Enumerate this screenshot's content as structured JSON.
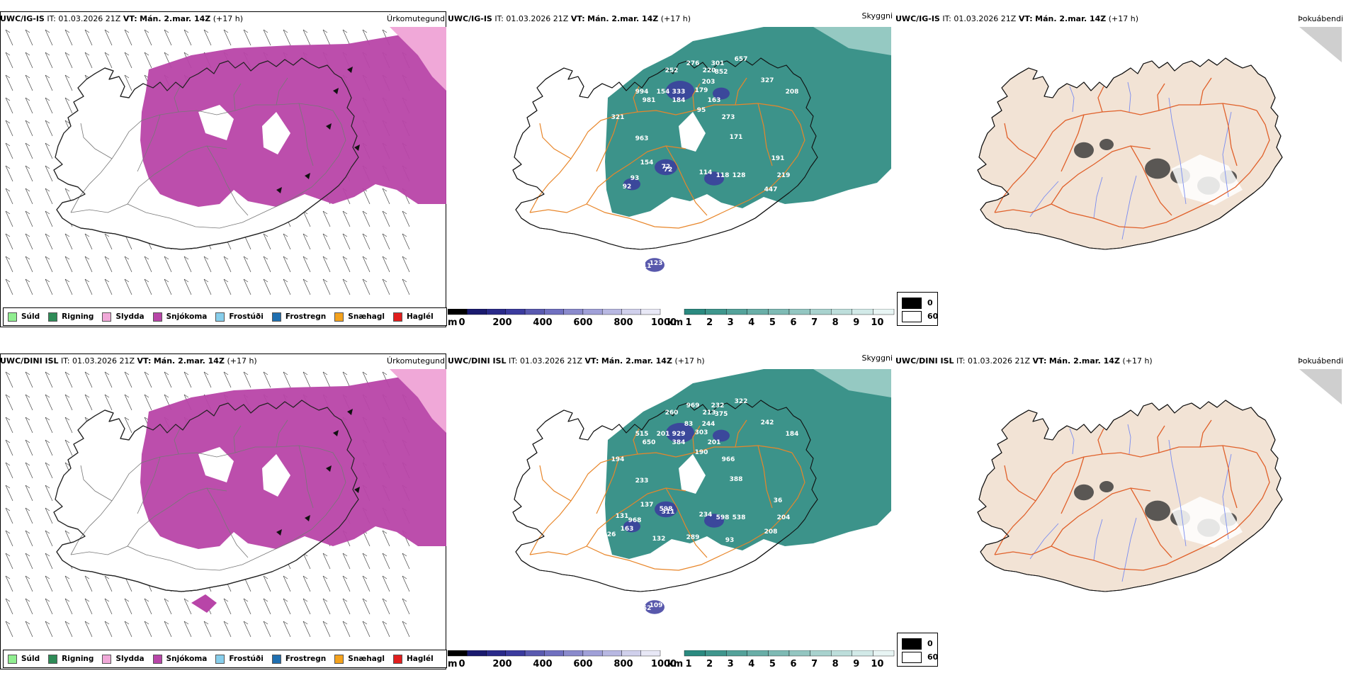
{
  "panels": [
    {
      "model": "UWC/IG-IS",
      "it_label": "IT:",
      "it_value": "01.03.2026 21Z",
      "vt_label": "VT:",
      "vt_value": "Mán. 2.mar. 14Z",
      "lead": "(+17 h)"
    },
    {
      "model": "UWC/DINI ISL",
      "it_label": "IT:",
      "it_value": "01.03.2026 21Z",
      "vt_label": "VT:",
      "vt_value": "Mán. 2.mar. 14Z",
      "lead": "(+17 h)"
    }
  ],
  "titles": {
    "precip": "Úrkomutegund",
    "vis": "Skyggni",
    "fog": "Þokuábendi"
  },
  "legend": [
    {
      "label": "Súld",
      "color": "#90ee90"
    },
    {
      "label": "Rigning",
      "color": "#2e8b57"
    },
    {
      "label": "Slydda",
      "color": "#f0a8d8"
    },
    {
      "label": "Snjókoma",
      "color": "#b845a8"
    },
    {
      "label": "Frostúði",
      "color": "#87ceeb"
    },
    {
      "label": "Frostregn",
      "color": "#1f6fb0"
    },
    {
      "label": "Snæhagl",
      "color": "#f4a21d"
    },
    {
      "label": "Haglél",
      "color": "#e11d1d"
    }
  ],
  "colors": {
    "snow": "#b845a8",
    "sleet": "#f0a8d8",
    "vis_teal": "#2b8a80",
    "ceiling_blue": "#3b3b9e",
    "land_fog": "#f2e3d5",
    "road": "#e8862a",
    "fog_road": "#e0602a",
    "river": "#7a8cf0"
  },
  "ceiling_bar": {
    "unit": "m",
    "ticks": [
      "0",
      "200",
      "400",
      "600",
      "800",
      "1000"
    ]
  },
  "vis_bar": {
    "unit": "km",
    "ticks": [
      "1",
      "2",
      "3",
      "4",
      "5",
      "6",
      "7",
      "8",
      "9",
      "10"
    ]
  },
  "fog_legend": {
    "high": "0",
    "low": "60"
  },
  "cloud_labels": [
    [
      "276",
      "301",
      "252",
      "220",
      "657",
      "852",
      "327",
      "203",
      "994",
      "154",
      "333",
      "179",
      "981",
      "184",
      "163",
      "208",
      "95",
      "72",
      "321",
      "273",
      "171",
      "963",
      "154",
      "72",
      "191",
      "114",
      "118",
      "128",
      "219",
      "93",
      "92",
      "447",
      "111",
      "123"
    ],
    [
      "969",
      "232",
      "260",
      "213",
      "322",
      "375",
      "242",
      "244",
      "515",
      "201",
      "929",
      "303",
      "650",
      "384",
      "201",
      "184",
      "190",
      "311",
      "194",
      "966",
      "388",
      "233",
      "137",
      "598",
      "36",
      "234",
      "598",
      "538",
      "204",
      "968",
      "163",
      "208",
      "152",
      "109",
      "83",
      "131",
      "126",
      "132",
      "289",
      "141",
      "93",
      "57"
    ]
  ]
}
